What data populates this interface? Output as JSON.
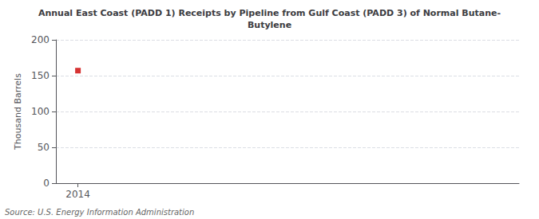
{
  "chart_data": {
    "type": "scatter",
    "title": "Annual East Coast (PADD 1) Receipts by Pipeline from Gulf Coast (PADD 3) of Normal Butane-\nButylene",
    "y_label": "Thousand Barrels",
    "annotations": [
      "Source: U.S. Energy Information Administration"
    ],
    "x": [
      2014
    ],
    "values": [
      157
    ],
    "color": "#cc0000",
    "marker": "square",
    "xlim": [
      2013.6,
      2022
    ],
    "xticks": [
      2014
    ],
    "ylim": [
      0,
      200
    ],
    "yticks": [
      0,
      50,
      100,
      150,
      200
    ],
    "grid": true
  }
}
